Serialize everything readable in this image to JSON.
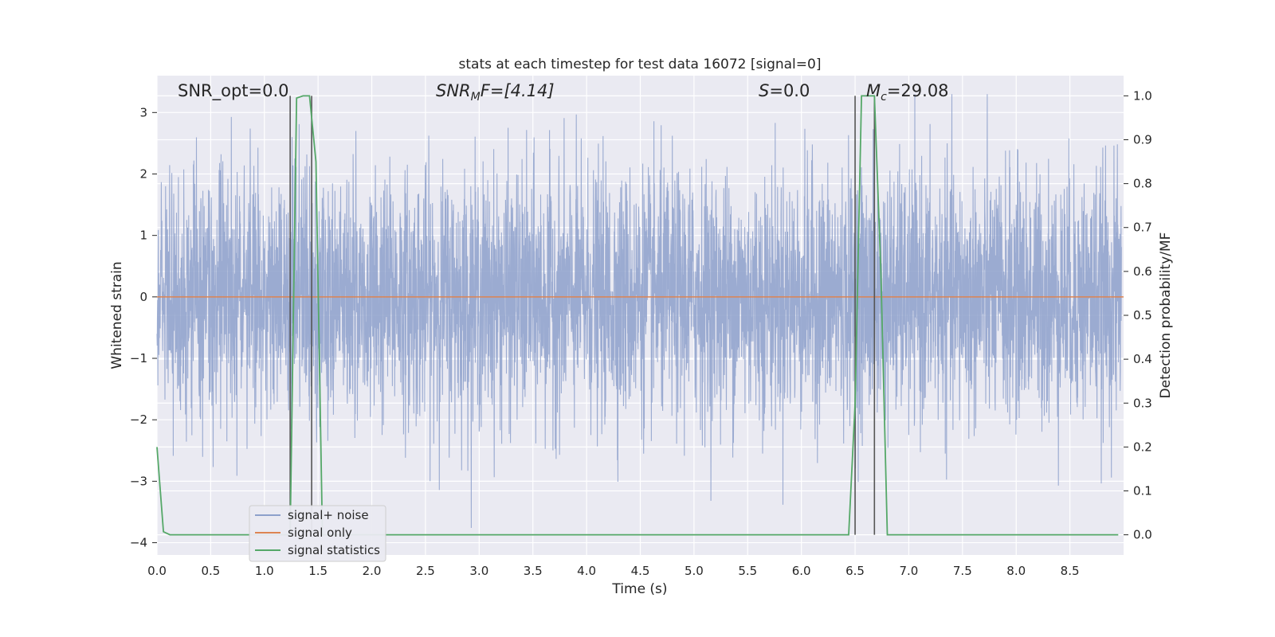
{
  "chart_data": {
    "type": "line",
    "title": "stats at each timestep for test data 16072 [signal=0]",
    "xlabel": "Time (s)",
    "ylabel": "Whitened strain",
    "y2label": "Detection probability/MF",
    "xlim": [
      0.0,
      9.0
    ],
    "ylim": [
      -4.2,
      3.6
    ],
    "y2lim": [
      -0.046,
      1.046
    ],
    "xticks": [
      "0.0",
      "0.5",
      "1.0",
      "1.5",
      "2.0",
      "2.5",
      "3.0",
      "3.5",
      "4.0",
      "4.5",
      "5.0",
      "5.5",
      "6.0",
      "6.5",
      "7.0",
      "7.5",
      "8.0",
      "8.5"
    ],
    "yticks": [
      "3",
      "2",
      "1",
      "0",
      "−1",
      "−2",
      "−3",
      "−4"
    ],
    "y2ticks": [
      "1.0",
      "0.9",
      "0.8",
      "0.7",
      "0.6",
      "0.5",
      "0.4",
      "0.3",
      "0.2",
      "0.1",
      "0.0"
    ],
    "grid": true,
    "legend_position": "lower-left",
    "annotations": {
      "snr_opt": "SNR_opt=0.0",
      "snr_mf_label": "SNR",
      "snr_mf_sub": "M",
      "snr_mf_rest": "F=[4.14]",
      "s_label": "S",
      "s_rest": "=0.0",
      "mc_label": "M",
      "mc_sub": "c",
      "mc_rest": "=29.08"
    },
    "series": [
      {
        "name": "signal+ noise",
        "color": "#8da0cb",
        "description_values": "whitened noise, approx. amplitude envelope ±2 with peaks near ±3.3",
        "amplitude_std": 1.0
      },
      {
        "name": "signal only",
        "color": "#dd8452",
        "x": [
          0.0,
          9.0
        ],
        "y": [
          0.0,
          0.0
        ]
      },
      {
        "name": "signal statistics",
        "color": "#55a868",
        "axis": "right",
        "x": [
          0.0,
          0.06,
          0.12,
          1.24,
          1.3,
          1.36,
          1.42,
          1.48,
          1.54,
          6.44,
          6.5,
          6.56,
          6.62,
          6.68,
          6.74,
          6.8,
          8.95
        ],
        "y": [
          0.2,
          0.007,
          0.0,
          0.0,
          0.995,
          1.0,
          1.0,
          0.85,
          0.0,
          0.0,
          0.3,
          1.0,
          1.0,
          1.0,
          0.6,
          0.0,
          0.0
        ]
      }
    ],
    "vlines": [
      {
        "x": 1.24,
        "ymin": 0.0,
        "ymax": 1.0,
        "color": "#555555"
      },
      {
        "x": 1.44,
        "ymin": 0.0,
        "ymax": 1.0,
        "color": "#555555"
      },
      {
        "x": 6.5,
        "ymin": 0.0,
        "ymax": 1.0,
        "color": "#555555"
      },
      {
        "x": 6.68,
        "ymin": 0.0,
        "ymax": 1.0,
        "color": "#555555"
      }
    ]
  },
  "legend": {
    "items": [
      {
        "label": "signal+ noise",
        "color": "#8da0cb"
      },
      {
        "label": "signal only",
        "color": "#dd8452"
      },
      {
        "label": "signal statistics",
        "color": "#55a868"
      }
    ]
  },
  "colors": {
    "plot_bg": "#eaeaf2",
    "grid": "#ffffff",
    "text": "#262626"
  }
}
